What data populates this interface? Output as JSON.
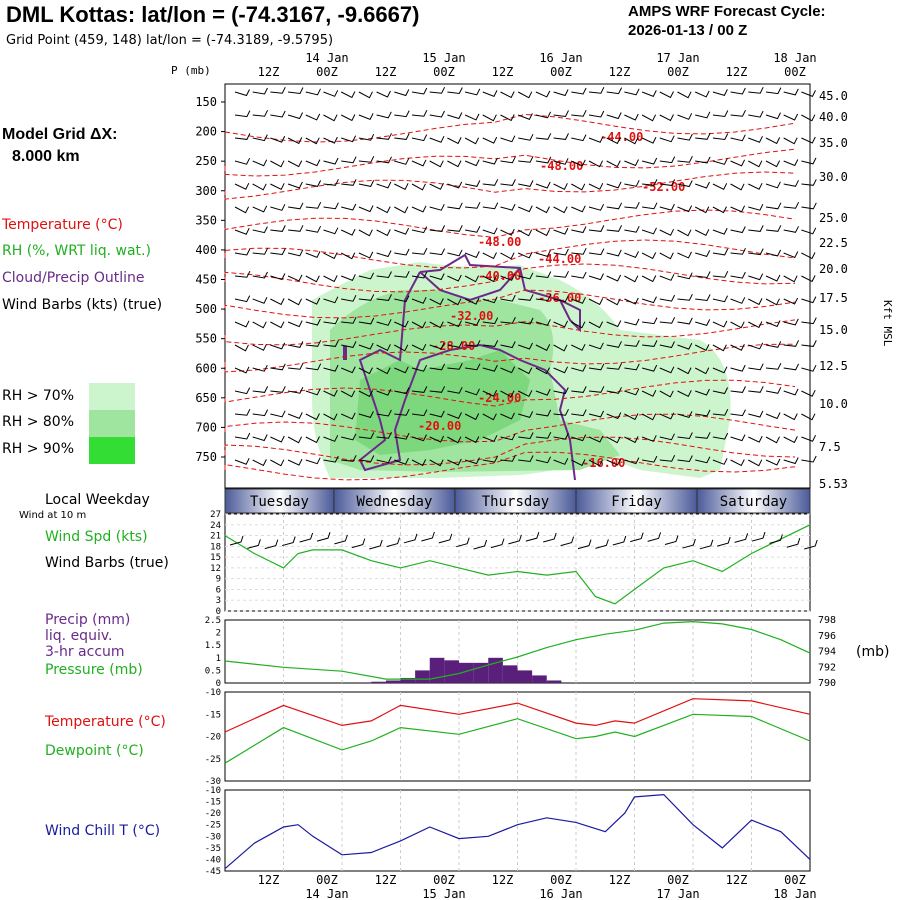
{
  "header": {
    "title": "DML Kottas:  lat/lon = (-74.3167, -9.6667)",
    "subtitle": "Grid Point (459, 148) lat/lon = (-74.3189, -9.5795)",
    "cycle_line1": "AMPS WRF Forecast Cycle:",
    "cycle_line2": "2026-01-13 / 00  Z"
  },
  "model_grid": {
    "label": "Model Grid ΔX:",
    "value": "8.000 km"
  },
  "colors": {
    "temperature": "#e01010",
    "rh": "#20b020",
    "cloud": "#6a2a8a",
    "wind": "#000000",
    "windchill": "#1a1aa0",
    "pressure": "#20b020",
    "rh70": "#cdf5cd",
    "rh80": "#9fe49f",
    "rh90": "#33dd33",
    "precip": "#5a1f7a",
    "weekday_band": "#4b5a99"
  },
  "legend_top": {
    "temperature": "Temperature (°C)",
    "rh": "RH (%, WRT liq. wat.)",
    "cloud": "Cloud/Precip Outline",
    "wind": "Wind Barbs (kts) (true)",
    "rh_levels": [
      "RH > 70%",
      "RH > 80%",
      "RH > 90%"
    ]
  },
  "panel_labels": {
    "local_weekday": "Local Weekday",
    "wind10": "Wind at 10 m",
    "wind_spd": "Wind Spd (kts)",
    "wind_barbs": "Wind Barbs (true)",
    "precip": [
      "Precip (mm)",
      "liq. equiv.",
      "3-hr accum"
    ],
    "pressure": "Pressure (mb)",
    "pressure_unit": "(mb)",
    "temperature": "Temperature (°C)",
    "dewpoint": "Dewpoint (°C)",
    "windchill": "Wind Chill T (°C)"
  },
  "chart_data": [
    {
      "type": "heatmap",
      "name": "time-height",
      "x_hours": [
        0,
        120
      ],
      "top_ticks_hour": [
        "12Z",
        "00Z",
        "12Z",
        "00Z",
        "12Z",
        "00Z",
        "12Z",
        "00Z",
        "12Z",
        "00Z"
      ],
      "top_dates": [
        "14 Jan",
        "15 Jan",
        "16 Jan",
        "17 Jan",
        "18 Jan"
      ],
      "ylabel_left": "P (mb)",
      "ylabel_right": "Kft MSL",
      "pressure_levels": [
        150,
        200,
        250,
        300,
        350,
        400,
        450,
        500,
        550,
        600,
        650,
        700,
        750
      ],
      "height_kft": [
        "45.0",
        "40.0",
        "35.0",
        "30.0",
        "25.0",
        "22.5",
        "20.0",
        "17.5",
        "15.0",
        "12.5",
        "10.0",
        "7.5",
        "5.53"
      ],
      "isotherm_labels": [
        "-44.00",
        "-48.00",
        "-52.00",
        "-48.00",
        "-44.00",
        "-40.00",
        "-36.00",
        "-32.00",
        "-28.00",
        "-24.00",
        "-20.00",
        "-16.00"
      ]
    },
    {
      "type": "line",
      "name": "wind speed",
      "ylabel": "Wind Spd (kts)",
      "y_ticks": [
        0,
        3,
        6,
        9,
        12,
        15,
        18,
        21,
        24,
        27
      ],
      "ylim": [
        0,
        27
      ],
      "x": [
        0,
        6,
        12,
        15,
        18,
        24,
        30,
        36,
        42,
        48,
        54,
        60,
        66,
        72,
        76,
        80,
        84,
        90,
        96,
        102,
        108,
        114,
        120
      ],
      "y": [
        21,
        16,
        12,
        16,
        17,
        17,
        14,
        12,
        14,
        12,
        10,
        11,
        10,
        11,
        4,
        2,
        6,
        12,
        14,
        11,
        16,
        20,
        24
      ]
    },
    {
      "type": "line",
      "name": "pressure",
      "ylabel_right": "Pressure (mb)",
      "y_ticks_right": [
        790,
        792,
        794,
        796,
        798
      ],
      "x": [
        0,
        12,
        24,
        33,
        42,
        48,
        54,
        60,
        66,
        72,
        78,
        84,
        90,
        96,
        102,
        108,
        114,
        120
      ],
      "y": [
        792.8,
        792,
        791.5,
        790.5,
        790.5,
        791.2,
        792.3,
        793.3,
        794.5,
        795.5,
        796.2,
        796.7,
        797.6,
        797.8,
        797.5,
        796.8,
        795.5,
        793.8
      ]
    },
    {
      "type": "bar",
      "name": "precip",
      "ylabel": "Precip (mm)",
      "y_ticks": [
        "0",
        "0.5",
        "1",
        "1.5",
        "2",
        "2.5"
      ],
      "ylim": [
        0,
        2.5
      ],
      "x": [
        30,
        33,
        36,
        39,
        42,
        45,
        48,
        51,
        54,
        57,
        60,
        63,
        66
      ],
      "values": [
        0.05,
        0.1,
        0.2,
        0.5,
        1.0,
        0.9,
        0.8,
        0.8,
        1.0,
        0.7,
        0.5,
        0.3,
        0.1
      ]
    },
    {
      "type": "line",
      "name": "temperature and dewpoint",
      "y_ticks": [
        -10,
        -15,
        -20,
        -25,
        -30
      ],
      "ylim": [
        -30,
        -10
      ],
      "series": [
        {
          "name": "Temperature",
          "x": [
            0,
            12,
            24,
            30,
            36,
            48,
            60,
            72,
            76,
            80,
            84,
            96,
            108,
            120
          ],
          "y": [
            -19,
            -13,
            -17.5,
            -16.5,
            -13,
            -15,
            -12.5,
            -17,
            -17.5,
            -16.5,
            -17,
            -11.5,
            -12,
            -15
          ]
        },
        {
          "name": "Dewpoint",
          "x": [
            0,
            12,
            24,
            30,
            36,
            48,
            60,
            72,
            76,
            80,
            84,
            96,
            108,
            120
          ],
          "y": [
            -26,
            -18,
            -23,
            -21,
            -18,
            -19.5,
            -16,
            -20.5,
            -20,
            -19,
            -20,
            -15,
            -15.5,
            -21
          ]
        }
      ]
    },
    {
      "type": "line",
      "name": "wind chill",
      "ylabel": "Wind Chill T (°C)",
      "y_ticks": [
        -10,
        -15,
        -20,
        -25,
        -30,
        -35,
        -40,
        -45
      ],
      "ylim": [
        -45,
        -10
      ],
      "x": [
        0,
        6,
        12,
        15,
        18,
        24,
        30,
        36,
        42,
        48,
        54,
        60,
        66,
        72,
        78,
        82,
        84,
        90,
        96,
        102,
        108,
        114,
        120
      ],
      "y": [
        -44,
        -33,
        -26,
        -25,
        -30,
        -38,
        -37,
        -32,
        -26,
        -31,
        -30,
        -25,
        -22,
        -24,
        -28,
        -20,
        -13,
        -12,
        -25,
        -35,
        -23,
        -28,
        -40
      ]
    }
  ],
  "weekdays": [
    "Tuesday",
    "Wednesday",
    "Thursday",
    "Friday",
    "Saturday"
  ],
  "bottom_ticks_hour": [
    "12Z",
    "00Z",
    "12Z",
    "00Z",
    "12Z",
    "00Z",
    "12Z",
    "00Z",
    "12Z",
    "00Z"
  ],
  "bottom_dates": [
    "14 Jan",
    "15 Jan",
    "16 Jan",
    "17 Jan",
    "18 Jan"
  ]
}
